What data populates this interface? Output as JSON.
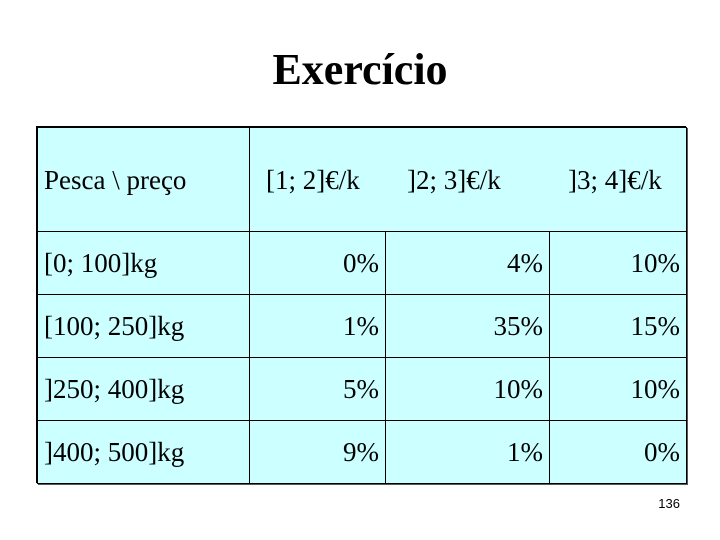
{
  "title": "Exercício",
  "table": {
    "corner_label": "Pesca \\ preço",
    "columns": [
      "[1; 2]€/k",
      "]2; 3]€/k",
      "]3; 4]€/k"
    ],
    "rows": [
      {
        "label": "[0; 100]kg",
        "values": [
          "0%",
          "4%",
          "10%"
        ]
      },
      {
        "label": "[100; 250]kg",
        "values": [
          "1%",
          "35%",
          "15%"
        ]
      },
      {
        "label": "]250; 400]kg",
        "values": [
          "5%",
          "10%",
          "10%"
        ]
      },
      {
        "label": "]400; 500]kg",
        "values": [
          "9%",
          "1%",
          "0%"
        ]
      }
    ],
    "background_color": "#ccffff"
  },
  "page_number": "136"
}
